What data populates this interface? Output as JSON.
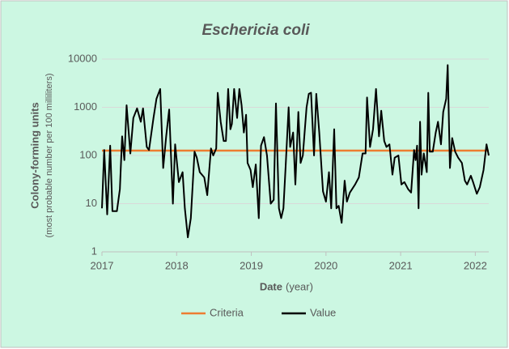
{
  "chart_data": {
    "type": "line",
    "title": "Eschericia coli",
    "x_label": "Date",
    "x_label_unit": "(year)",
    "y_label": "Colony-forming units",
    "y_label_unit": "(most probable number per 100 milliliters)",
    "y_log": true,
    "grid": true,
    "legend": "bottom",
    "xlim": [
      2017,
      2022.18
    ],
    "xticks": [
      2017,
      2018,
      2019,
      2020,
      2021,
      2022
    ],
    "ylim": [
      1,
      10000
    ],
    "yticks": [
      1,
      10,
      100,
      1000,
      10000
    ],
    "series": [
      {
        "name": "Criteria",
        "color": "#ed7d31",
        "x": [
          2017,
          2022.18
        ],
        "values": [
          126,
          126
        ]
      },
      {
        "name": "Value",
        "color": "#000000",
        "x": [
          2017,
          2017.03,
          2017.07,
          2017.11,
          2017.14,
          2017.2,
          2017.24,
          2017.27,
          2017.3,
          2017.33,
          2017.38,
          2017.42,
          2017.47,
          2017.52,
          2017.55,
          2017.6,
          2017.63,
          2017.69,
          2017.73,
          2017.78,
          2017.82,
          2017.86,
          2017.9,
          2017.95,
          2017.98,
          2018.03,
          2018.08,
          2018.11,
          2018.15,
          2018.19,
          2018.24,
          2018.27,
          2018.31,
          2018.37,
          2018.41,
          2018.46,
          2018.49,
          2018.53,
          2018.55,
          2018.59,
          2018.63,
          2018.66,
          2018.69,
          2018.72,
          2018.74,
          2018.77,
          2018.81,
          2018.84,
          2018.87,
          2018.9,
          2018.93,
          2018.95,
          2018.99,
          2019.02,
          2019.06,
          2019.1,
          2019.13,
          2019.17,
          2019.21,
          2019.26,
          2019.3,
          2019.33,
          2019.37,
          2019.4,
          2019.43,
          2019.46,
          2019.5,
          2019.52,
          2019.56,
          2019.59,
          2019.63,
          2019.66,
          2019.69,
          2019.74,
          2019.77,
          2019.8,
          2019.84,
          2019.87,
          2019.91,
          2019.96,
          2020,
          2020.04,
          2020.07,
          2020.11,
          2020.14,
          2020.17,
          2020.21,
          2020.25,
          2020.28,
          2020.32,
          2020.39,
          2020.44,
          2020.49,
          2020.53,
          2020.55,
          2020.59,
          2020.63,
          2020.67,
          2020.71,
          2020.74,
          2020.78,
          2020.81,
          2020.85,
          2020.89,
          2020.92,
          2020.97,
          2021.01,
          2021.05,
          2021.1,
          2021.14,
          2021.18,
          2021.2,
          2021.22,
          2021.24,
          2021.26,
          2021.28,
          2021.31,
          2021.35,
          2021.37,
          2021.39,
          2021.43,
          2021.47,
          2021.5,
          2021.54,
          2021.57,
          2021.61,
          2021.63,
          2021.66,
          2021.69,
          2021.73,
          2021.77,
          2021.82,
          2021.86,
          2021.89,
          2021.94,
          2021.97,
          2022.02,
          2022.06,
          2022.11,
          2022.15,
          2022.18
        ],
        "values": [
          8,
          130,
          6,
          160,
          7,
          7,
          20,
          250,
          80,
          1100,
          110,
          600,
          950,
          500,
          950,
          150,
          130,
          600,
          1500,
          2400,
          55,
          250,
          900,
          10,
          170,
          28,
          45,
          8,
          2,
          5,
          120,
          90,
          45,
          35,
          15,
          140,
          100,
          140,
          2000,
          500,
          200,
          200,
          2400,
          350,
          450,
          2400,
          600,
          2400,
          1100,
          300,
          700,
          70,
          50,
          22,
          65,
          5,
          160,
          240,
          100,
          10,
          12,
          1200,
          8,
          5,
          8,
          60,
          1000,
          150,
          300,
          25,
          800,
          70,
          100,
          1000,
          1900,
          2000,
          100,
          1900,
          300,
          18,
          11,
          45,
          8,
          350,
          8,
          9,
          4,
          30,
          11,
          17,
          25,
          35,
          110,
          110,
          1600,
          150,
          350,
          2400,
          250,
          850,
          200,
          150,
          170,
          40,
          90,
          100,
          25,
          28,
          20,
          17,
          130,
          80,
          160,
          8,
          500,
          40,
          110,
          45,
          2000,
          120,
          120,
          300,
          500,
          170,
          800,
          1500,
          7500,
          55,
          230,
          120,
          90,
          70,
          30,
          25,
          38,
          28,
          16,
          22,
          50,
          170,
          100
        ]
      }
    ]
  }
}
